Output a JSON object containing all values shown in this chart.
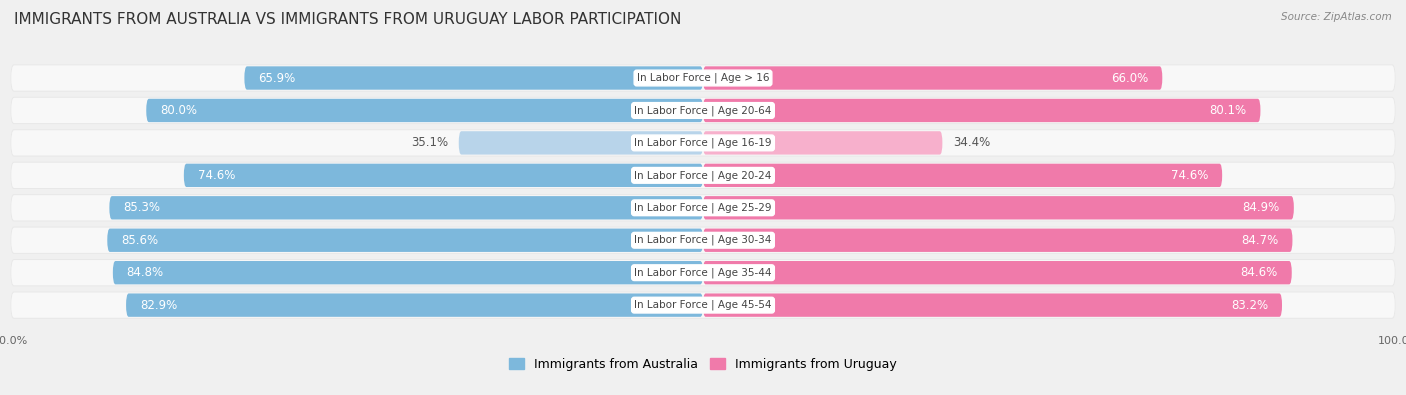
{
  "title": "IMMIGRANTS FROM AUSTRALIA VS IMMIGRANTS FROM URUGUAY LABOR PARTICIPATION",
  "source": "Source: ZipAtlas.com",
  "categories": [
    "In Labor Force | Age > 16",
    "In Labor Force | Age 20-64",
    "In Labor Force | Age 16-19",
    "In Labor Force | Age 20-24",
    "In Labor Force | Age 25-29",
    "In Labor Force | Age 30-34",
    "In Labor Force | Age 35-44",
    "In Labor Force | Age 45-54"
  ],
  "australia_values": [
    65.9,
    80.0,
    35.1,
    74.6,
    85.3,
    85.6,
    84.8,
    82.9
  ],
  "uruguay_values": [
    66.0,
    80.1,
    34.4,
    74.6,
    84.9,
    84.7,
    84.6,
    83.2
  ],
  "australia_color_strong": "#7db8dc",
  "australia_color_light": "#b8d4ea",
  "uruguay_color_strong": "#f07aaa",
  "uruguay_color_light": "#f7b0cc",
  "row_bg_color": "#e8e8e8",
  "row_inner_color": "#f8f8f8",
  "text_color_dark": "#555555",
  "text_color_white": "#ffffff",
  "label_fontsize": 8.5,
  "title_fontsize": 11,
  "legend_fontsize": 9,
  "axis_label_fontsize": 8,
  "max_value": 100.0,
  "bar_height": 0.72,
  "legend_labels": [
    "Immigrants from Australia",
    "Immigrants from Uruguay"
  ]
}
